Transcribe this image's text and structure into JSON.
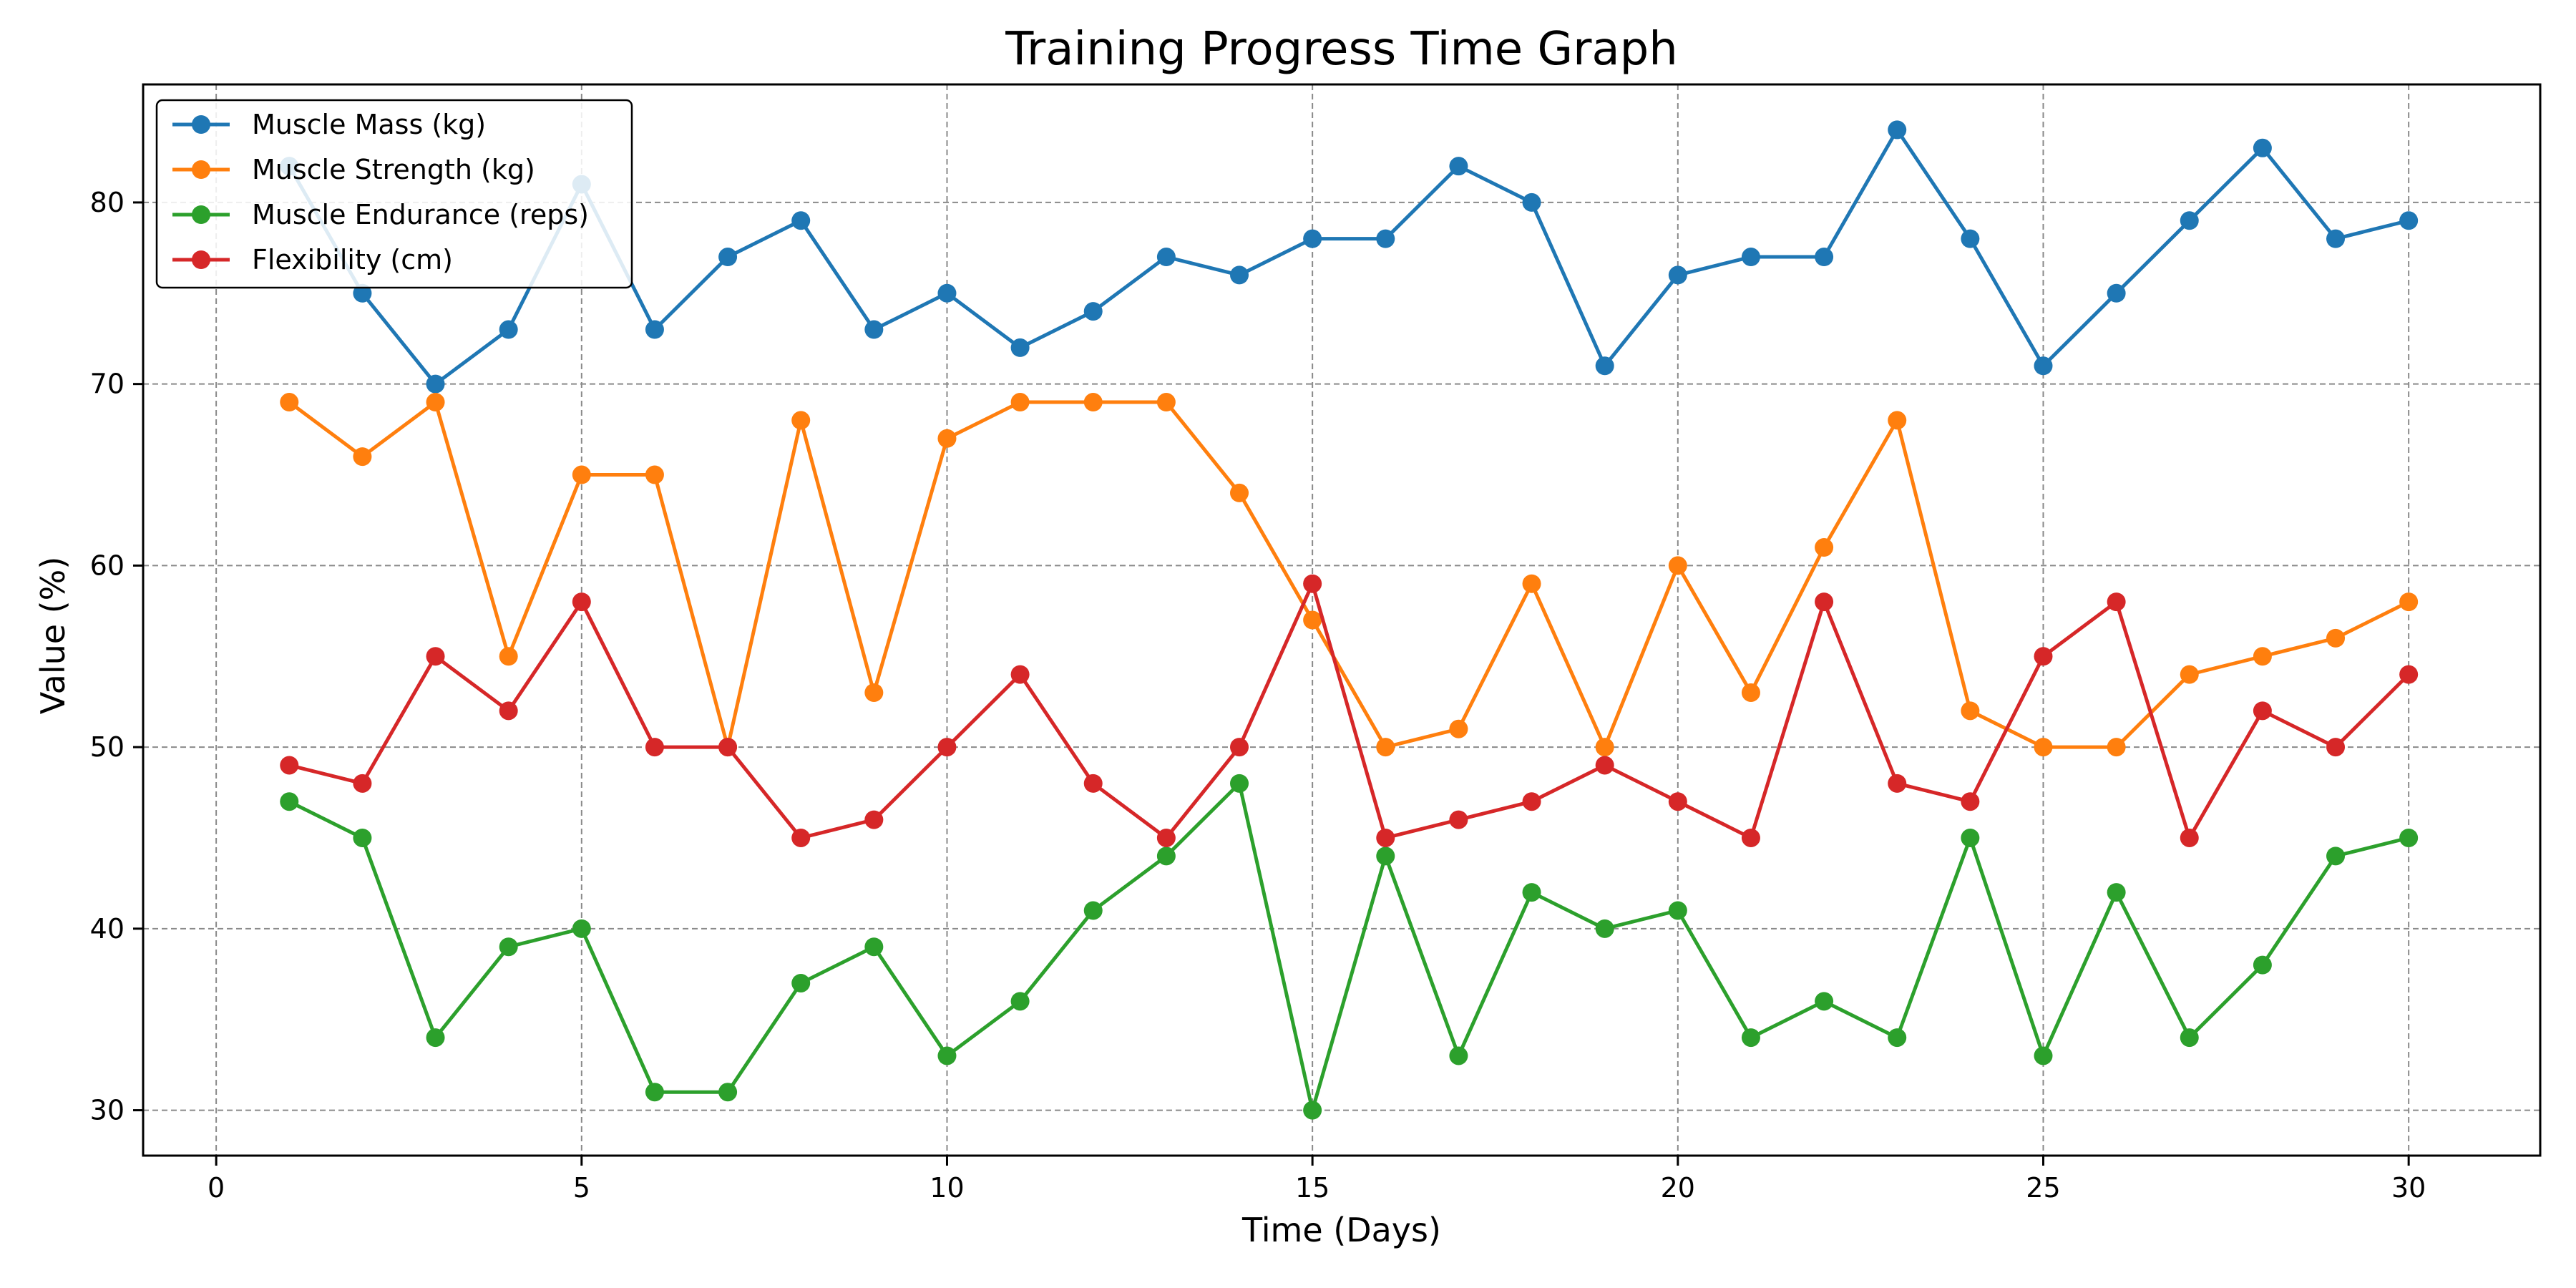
{
  "chart_data": {
    "type": "line",
    "title": "Training Progress Time Graph",
    "xlabel": "Time (Days)",
    "ylabel": "Value (%)",
    "xlim": [
      -1,
      31.8
    ],
    "ylim": [
      27.5,
      86.5
    ],
    "xticks": [
      0,
      5,
      10,
      15,
      20,
      25,
      30
    ],
    "yticks": [
      30,
      40,
      50,
      60,
      70,
      80
    ],
    "grid": true,
    "legend_position": "top-left",
    "x": [
      1,
      2,
      3,
      4,
      5,
      6,
      7,
      8,
      9,
      10,
      11,
      12,
      13,
      14,
      15,
      16,
      17,
      18,
      19,
      20,
      21,
      22,
      23,
      24,
      25,
      26,
      27,
      28,
      29,
      30
    ],
    "series": [
      {
        "name": "Muscle Mass (kg)",
        "color": "#1f77b4",
        "values": [
          82,
          75,
          70,
          73,
          81,
          73,
          77,
          79,
          73,
          75,
          72,
          74,
          77,
          76,
          78,
          78,
          82,
          80,
          71,
          76,
          77,
          77,
          84,
          78,
          71,
          75,
          79,
          83,
          78,
          79
        ]
      },
      {
        "name": "Muscle Strength (kg)",
        "color": "#ff7f0e",
        "values": [
          69,
          66,
          69,
          55,
          65,
          65,
          50,
          68,
          53,
          67,
          69,
          69,
          69,
          64,
          57,
          50,
          51,
          59,
          50,
          60,
          53,
          61,
          68,
          52,
          50,
          50,
          54,
          55,
          56,
          58
        ]
      },
      {
        "name": "Muscle Endurance (reps)",
        "color": "#2ca02c",
        "values": [
          47,
          45,
          34,
          39,
          40,
          31,
          31,
          37,
          39,
          33,
          36,
          41,
          44,
          48,
          30,
          44,
          33,
          42,
          40,
          41,
          34,
          36,
          34,
          45,
          33,
          42,
          34,
          38,
          44,
          45
        ]
      },
      {
        "name": "Flexibility (cm)",
        "color": "#d62728",
        "values": [
          49,
          48,
          55,
          52,
          58,
          50,
          50,
          45,
          46,
          50,
          54,
          48,
          45,
          50,
          59,
          45,
          46,
          47,
          49,
          47,
          45,
          58,
          48,
          47,
          55,
          58,
          45,
          52,
          50,
          54
        ]
      }
    ]
  }
}
